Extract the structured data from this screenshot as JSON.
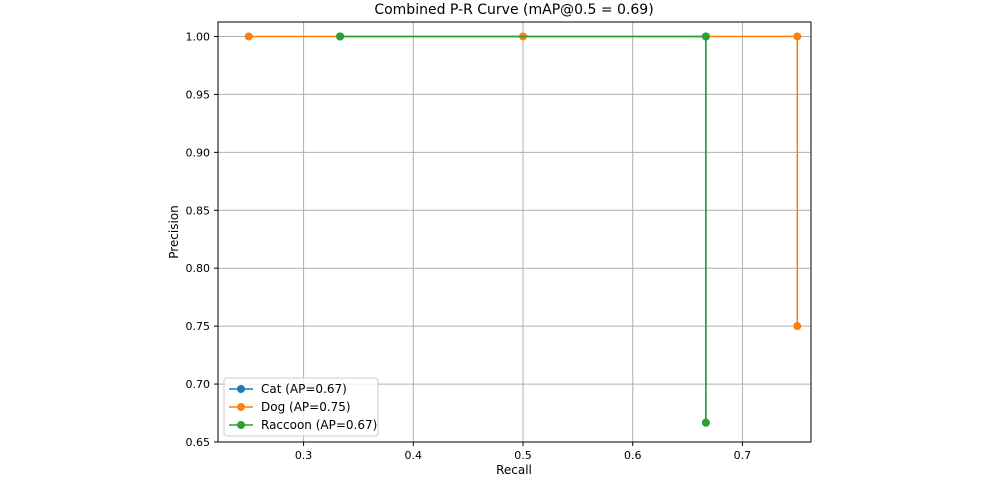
{
  "chart_data": {
    "type": "line",
    "title": "Combined P-R Curve (mAP@0.5 = 0.69)",
    "xlabel": "Recall",
    "ylabel": "Precision",
    "xlim": [
      0.222,
      0.7625
    ],
    "ylim": [
      0.65,
      1.0125
    ],
    "xticks": [
      "0.3",
      "0.4",
      "0.5",
      "0.6",
      "0.7"
    ],
    "yticks": [
      "0.65",
      "0.70",
      "0.75",
      "0.80",
      "0.85",
      "0.90",
      "0.95",
      "1.00"
    ],
    "grid": true,
    "legend_position": "lower-left",
    "series": [
      {
        "name": "Cat (AP=0.67)",
        "color": "#1f77b4",
        "points": [
          [
            0.3333,
            1.0
          ],
          [
            0.6667,
            1.0
          ],
          [
            0.6667,
            0.6667
          ]
        ]
      },
      {
        "name": "Dog (AP=0.75)",
        "color": "#ff7f0e",
        "points": [
          [
            0.25,
            1.0
          ],
          [
            0.5,
            1.0
          ],
          [
            0.75,
            1.0
          ],
          [
            0.75,
            0.75
          ]
        ]
      },
      {
        "name": "Raccoon (AP=0.67)",
        "color": "#2ca02c",
        "points": [
          [
            0.3333,
            1.0
          ],
          [
            0.6667,
            1.0
          ],
          [
            0.6667,
            0.6667
          ]
        ]
      }
    ]
  }
}
